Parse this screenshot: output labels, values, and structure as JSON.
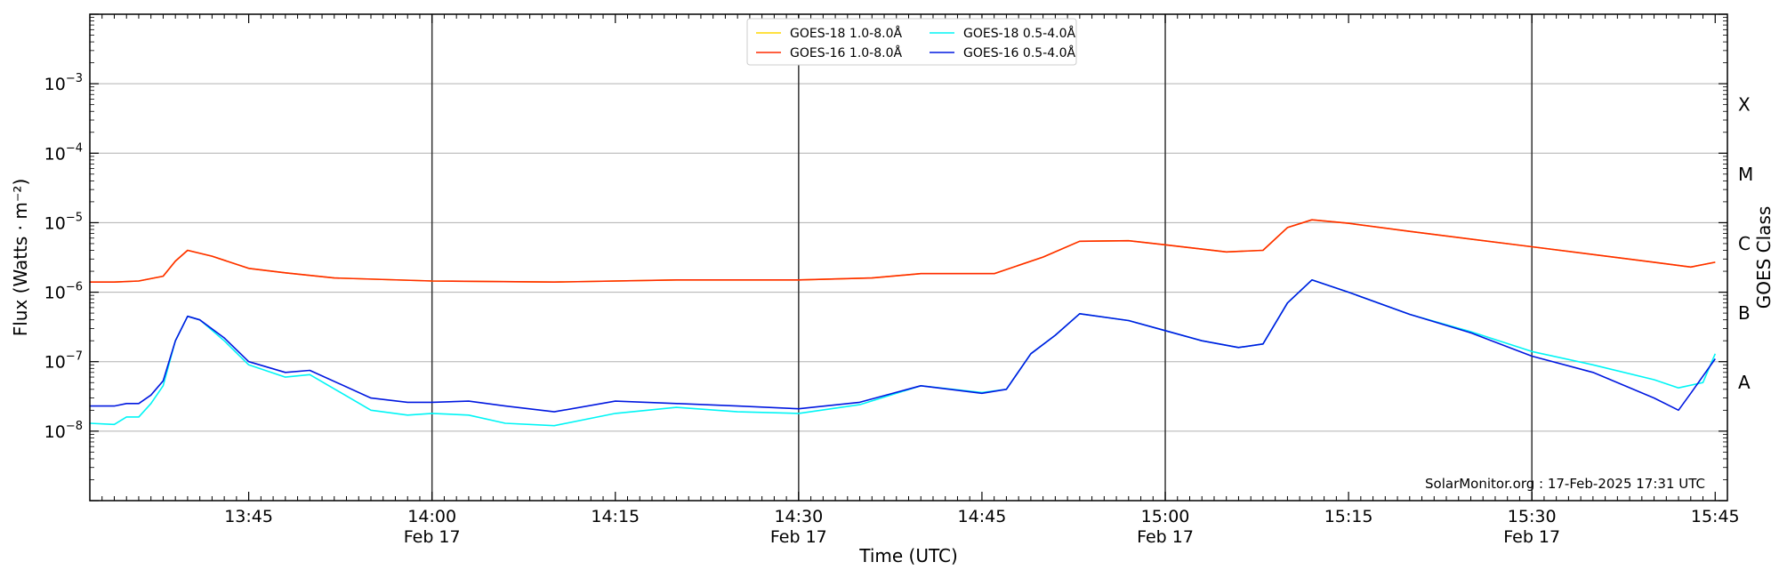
{
  "chart_data": {
    "type": "line",
    "xlabel": "Time (UTC)",
    "ylabel": "Flux (Watts · m⁻²)",
    "ylabel_right": "GOES Class",
    "yscale": "log",
    "ylim": [
      1e-09,
      0.01
    ],
    "xlim": [
      "13:32",
      "15:46"
    ],
    "credit": "SolarMonitor.org : 17-Feb-2025 17:31 UTC",
    "grid": "horizontal at decades",
    "legend_position": "top-center",
    "x_ticks": [
      {
        "time": "13:45",
        "label": "13:45",
        "sublabel": ""
      },
      {
        "time": "14:00",
        "label": "14:00",
        "sublabel": "Feb 17"
      },
      {
        "time": "14:15",
        "label": "14:15",
        "sublabel": ""
      },
      {
        "time": "14:30",
        "label": "14:30",
        "sublabel": "Feb 17"
      },
      {
        "time": "14:45",
        "label": "14:45",
        "sublabel": ""
      },
      {
        "time": "15:00",
        "label": "15:00",
        "sublabel": "Feb 17"
      },
      {
        "time": "15:15",
        "label": "15:15",
        "sublabel": ""
      },
      {
        "time": "15:30",
        "label": "15:30",
        "sublabel": "Feb 17"
      },
      {
        "time": "15:45",
        "label": "15:45",
        "sublabel": ""
      }
    ],
    "y_ticks": [
      {
        "value": 1e-08,
        "label": "10",
        "exp": "−8"
      },
      {
        "value": 1e-07,
        "label": "10",
        "exp": "−7"
      },
      {
        "value": 1e-06,
        "label": "10",
        "exp": "−6"
      },
      {
        "value": 1e-05,
        "label": "10",
        "exp": "−5"
      },
      {
        "value": 0.0001,
        "label": "10",
        "exp": "−4"
      },
      {
        "value": 0.001,
        "label": "10",
        "exp": "−3"
      }
    ],
    "goes_classes": [
      {
        "label": "A",
        "value": 5e-08
      },
      {
        "label": "B",
        "value": 5e-07
      },
      {
        "label": "C",
        "value": 5e-06
      },
      {
        "label": "M",
        "value": 5e-05
      },
      {
        "label": "X",
        "value": 0.0005
      }
    ],
    "vlines": [
      "14:00",
      "14:30",
      "15:00",
      "15:30"
    ],
    "series": [
      {
        "name": "GOES-18 1.0-8.0Å",
        "color": "#ffd700",
        "x": [
          "13:32",
          "13:34",
          "13:36",
          "13:38",
          "13:39",
          "13:40",
          "13:42",
          "13:45",
          "13:48",
          "13:52",
          "14:00",
          "14:10",
          "14:20",
          "14:30",
          "14:36",
          "14:40",
          "14:46",
          "14:50",
          "14:53",
          "14:57",
          "15:00",
          "15:05",
          "15:08",
          "15:10",
          "15:12",
          "15:15",
          "15:20",
          "15:30",
          "15:40",
          "15:43",
          "15:45"
        ],
        "values": [
          1.4e-06,
          1.4e-06,
          1.45e-06,
          1.7e-06,
          2.8e-06,
          4e-06,
          3.3e-06,
          2.2e-06,
          1.9e-06,
          1.6e-06,
          1.45e-06,
          1.4e-06,
          1.5e-06,
          1.5e-06,
          1.6e-06,
          1.85e-06,
          1.85e-06,
          3.2e-06,
          5.4e-06,
          5.5e-06,
          4.8e-06,
          3.8e-06,
          4e-06,
          8.5e-06,
          1.1e-05,
          9.8e-06,
          7.5e-06,
          4.5e-06,
          2.7e-06,
          2.3e-06,
          2.7e-06
        ]
      },
      {
        "name": "GOES-16 1.0-8.0Å",
        "color": "#ff2a00",
        "x": [
          "13:32",
          "13:34",
          "13:36",
          "13:38",
          "13:39",
          "13:40",
          "13:42",
          "13:45",
          "13:48",
          "13:52",
          "14:00",
          "14:10",
          "14:20",
          "14:30",
          "14:36",
          "14:40",
          "14:46",
          "14:50",
          "14:53",
          "14:57",
          "15:00",
          "15:05",
          "15:08",
          "15:10",
          "15:12",
          "15:15",
          "15:20",
          "15:30",
          "15:40",
          "15:43",
          "15:45"
        ],
        "values": [
          1.4e-06,
          1.4e-06,
          1.45e-06,
          1.7e-06,
          2.8e-06,
          4e-06,
          3.3e-06,
          2.2e-06,
          1.9e-06,
          1.6e-06,
          1.45e-06,
          1.4e-06,
          1.5e-06,
          1.5e-06,
          1.6e-06,
          1.85e-06,
          1.85e-06,
          3.2e-06,
          5.4e-06,
          5.5e-06,
          4.8e-06,
          3.8e-06,
          4e-06,
          8.5e-06,
          1.1e-05,
          9.8e-06,
          7.5e-06,
          4.5e-06,
          2.7e-06,
          2.3e-06,
          2.7e-06
        ]
      },
      {
        "name": "GOES-18 0.5-4.0Å",
        "color": "#00f5f5",
        "x": [
          "13:32",
          "13:34",
          "13:35",
          "13:36",
          "13:37",
          "13:38",
          "13:39",
          "13:40",
          "13:41",
          "13:43",
          "13:45",
          "13:48",
          "13:50",
          "13:55",
          "13:58",
          "14:00",
          "14:03",
          "14:06",
          "14:10",
          "14:15",
          "14:20",
          "14:25",
          "14:30",
          "14:35",
          "14:40",
          "14:45",
          "14:47",
          "14:49",
          "14:51",
          "14:53",
          "14:57",
          "15:00",
          "15:03",
          "15:06",
          "15:08",
          "15:10",
          "15:12",
          "15:15",
          "15:20",
          "15:25",
          "15:30",
          "15:35",
          "15:40",
          "15:42",
          "15:44",
          "15:45"
        ],
        "values": [
          1.3e-08,
          1.25e-08,
          1.6e-08,
          1.6e-08,
          2.5e-08,
          4.5e-08,
          2e-07,
          4.5e-07,
          4e-07,
          2e-07,
          9e-08,
          6e-08,
          6.5e-08,
          2e-08,
          1.7e-08,
          1.8e-08,
          1.7e-08,
          1.3e-08,
          1.2e-08,
          1.8e-08,
          2.2e-08,
          1.9e-08,
          1.8e-08,
          2.4e-08,
          4.5e-08,
          3.6e-08,
          4e-08,
          1.3e-07,
          2.4e-07,
          4.9e-07,
          3.9e-07,
          2.8e-07,
          2e-07,
          1.6e-07,
          1.8e-07,
          7e-07,
          1.5e-06,
          1e-06,
          4.8e-07,
          2.7e-07,
          1.4e-07,
          9e-08,
          5.5e-08,
          4.2e-08,
          5e-08,
          1.3e-07
        ]
      },
      {
        "name": "GOES-16 0.5-4.0Å",
        "color": "#0018e0",
        "x": [
          "13:32",
          "13:34",
          "13:35",
          "13:36",
          "13:37",
          "13:38",
          "13:39",
          "13:40",
          "13:41",
          "13:43",
          "13:45",
          "13:48",
          "13:50",
          "13:55",
          "13:58",
          "14:00",
          "14:03",
          "14:06",
          "14:10",
          "14:15",
          "14:20",
          "14:25",
          "14:30",
          "14:35",
          "14:40",
          "14:45",
          "14:47",
          "14:49",
          "14:51",
          "14:53",
          "14:57",
          "15:00",
          "15:03",
          "15:06",
          "15:08",
          "15:10",
          "15:12",
          "15:15",
          "15:20",
          "15:25",
          "15:30",
          "15:35",
          "15:40",
          "15:42",
          "15:43",
          "15:45"
        ],
        "values": [
          2.3e-08,
          2.3e-08,
          2.5e-08,
          2.5e-08,
          3.3e-08,
          5.3e-08,
          2e-07,
          4.5e-07,
          4e-07,
          2.2e-07,
          1e-07,
          7e-08,
          7.5e-08,
          3e-08,
          2.6e-08,
          2.6e-08,
          2.7e-08,
          2.3e-08,
          1.9e-08,
          2.7e-08,
          2.5e-08,
          2.3e-08,
          2.1e-08,
          2.6e-08,
          4.5e-08,
          3.5e-08,
          4e-08,
          1.3e-07,
          2.4e-07,
          4.9e-07,
          3.9e-07,
          2.8e-07,
          2e-07,
          1.6e-07,
          1.8e-07,
          7e-07,
          1.5e-06,
          1e-06,
          4.8e-07,
          2.6e-07,
          1.2e-07,
          7e-08,
          3e-08,
          2e-08,
          3.5e-08,
          1.1e-07
        ]
      }
    ]
  }
}
